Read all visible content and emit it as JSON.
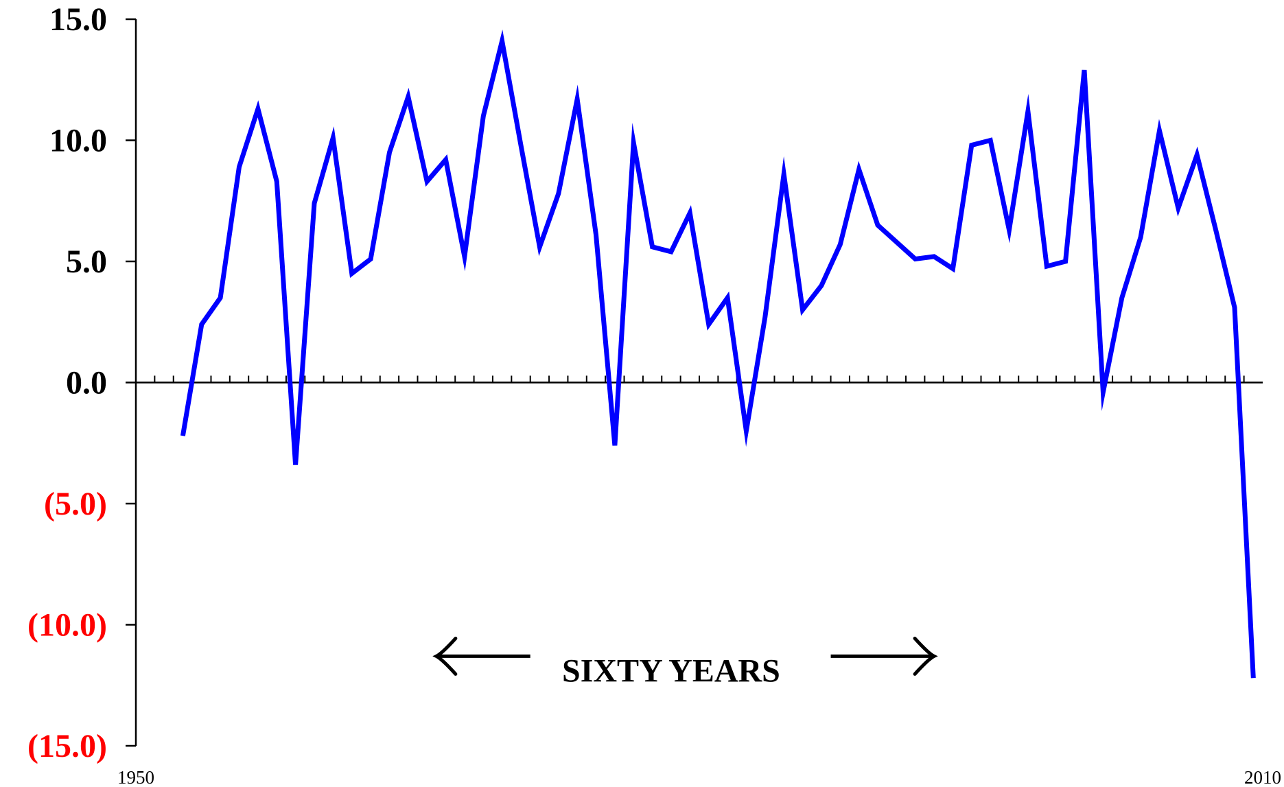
{
  "chart_data": {
    "type": "line",
    "title": "",
    "xlabel": "",
    "ylabel": "",
    "xlim": [
      1950,
      2010
    ],
    "ylim": [
      -15,
      15
    ],
    "grid": false,
    "colors": {
      "series": "#0000ff",
      "axis": "#000000",
      "positive_label": "#000000",
      "negative_label": "#ff0000"
    },
    "x_tick_labels": [
      {
        "value": 1950,
        "label": "1950"
      },
      {
        "value": 2010,
        "label": "2010"
      }
    ],
    "y_tick_labels": [
      {
        "value": 15,
        "label": "15.0"
      },
      {
        "value": 10,
        "label": "10.0"
      },
      {
        "value": 5,
        "label": "5.0"
      },
      {
        "value": 0,
        "label": "0.0"
      },
      {
        "value": -5,
        "label": "(5.0)"
      },
      {
        "value": -10,
        "label": "(10.0)"
      },
      {
        "value": -15,
        "label": "(15.0)"
      }
    ],
    "x_minor_ticks": {
      "start": 1951,
      "end": 2009,
      "step": 1
    },
    "annotation": {
      "text": "SIXTY YEARS",
      "arrow_left_from": 1971,
      "arrow_left_to": 1966,
      "arrow_right_from": 1987,
      "arrow_right_to": 1992.5,
      "text_x": 1978.5,
      "y": -11.3,
      "text_y": -11.9
    },
    "series": [
      {
        "values": [
          [
            1952.5,
            -2.2
          ],
          [
            1953.5,
            2.4
          ],
          [
            1954.5,
            3.5
          ],
          [
            1955.5,
            8.9
          ],
          [
            1956.5,
            11.3
          ],
          [
            1957.5,
            8.3
          ],
          [
            1958.5,
            -3.4
          ],
          [
            1959.5,
            7.4
          ],
          [
            1960.5,
            10.1
          ],
          [
            1961.5,
            4.5
          ],
          [
            1962.5,
            5.1
          ],
          [
            1963.5,
            9.5
          ],
          [
            1964.5,
            11.8
          ],
          [
            1965.5,
            8.3
          ],
          [
            1966.5,
            9.2
          ],
          [
            1967.5,
            5.2
          ],
          [
            1968.5,
            11.0
          ],
          [
            1969.5,
            14.1
          ],
          [
            1970.5,
            9.8
          ],
          [
            1971.5,
            5.6
          ],
          [
            1972.5,
            7.8
          ],
          [
            1973.5,
            11.7
          ],
          [
            1974.5,
            6.1
          ],
          [
            1975.5,
            -2.6
          ],
          [
            1976.5,
            9.9
          ],
          [
            1977.5,
            5.6
          ],
          [
            1978.5,
            5.4
          ],
          [
            1979.5,
            7.0
          ],
          [
            1980.5,
            2.4
          ],
          [
            1981.5,
            3.5
          ],
          [
            1982.5,
            -2.0
          ],
          [
            1983.5,
            2.7
          ],
          [
            1984.5,
            8.6
          ],
          [
            1985.5,
            3.0
          ],
          [
            1986.5,
            4.0
          ],
          [
            1987.5,
            5.7
          ],
          [
            1988.5,
            8.8
          ],
          [
            1989.5,
            6.5
          ],
          [
            1990.5,
            5.8
          ],
          [
            1991.5,
            5.1
          ],
          [
            1992.5,
            5.2
          ],
          [
            1993.5,
            4.7
          ],
          [
            1994.5,
            9.8
          ],
          [
            1995.5,
            10.0
          ],
          [
            1996.5,
            6.3
          ],
          [
            1997.5,
            11.2
          ],
          [
            1998.5,
            4.8
          ],
          [
            1999.5,
            5.0
          ],
          [
            2000.5,
            12.9
          ],
          [
            2001.5,
            -0.4
          ],
          [
            2002.5,
            3.5
          ],
          [
            2003.5,
            6.0
          ],
          [
            2004.5,
            10.4
          ],
          [
            2005.5,
            7.2
          ],
          [
            2006.5,
            9.4
          ],
          [
            2007.5,
            6.3
          ],
          [
            2008.5,
            3.1
          ],
          [
            2009.5,
            -12.2
          ]
        ]
      }
    ]
  }
}
